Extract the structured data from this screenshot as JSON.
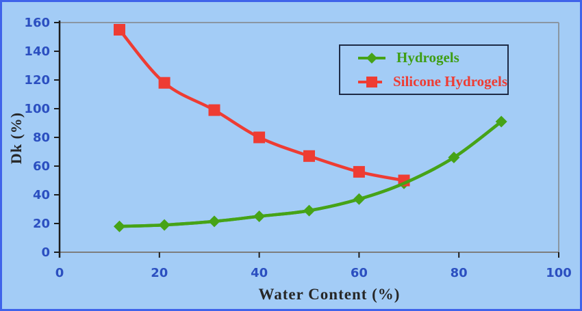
{
  "figure": {
    "background_color": "#a3ccf6",
    "outer_border_color": "#3f63ea",
    "axis_line_color": "#1c1c1c",
    "frame_line_color": "#8a96a2",
    "baseline_color": "#7d7d7d",
    "tick_label_color": "#2b4fc0",
    "axis_title_color": "#272727"
  },
  "chart_data": {
    "type": "line",
    "title": "",
    "xlabel": "Water Content (%)",
    "ylabel": "Dk (%)",
    "xlim": [
      0,
      100
    ],
    "ylim": [
      0,
      160
    ],
    "xticks": [
      0,
      20,
      40,
      60,
      80,
      100
    ],
    "yticks": [
      0,
      20,
      40,
      60,
      80,
      100,
      120,
      140,
      160
    ],
    "grid": false,
    "legend_position": "inside-top-right",
    "series": [
      {
        "name": "Hydrogels",
        "color": "#46a317",
        "marker": "diamond",
        "points": [
          [
            12,
            18
          ],
          [
            21,
            19
          ],
          [
            31,
            21.5
          ],
          [
            40,
            25
          ],
          [
            50,
            29
          ],
          [
            60,
            37
          ],
          [
            69,
            48
          ],
          [
            79,
            66
          ],
          [
            88.5,
            91
          ]
        ]
      },
      {
        "name": "Silicone Hydrogels",
        "color": "#ee3c33",
        "marker": "square",
        "points": [
          [
            12,
            155
          ],
          [
            21,
            118
          ],
          [
            31,
            99
          ],
          [
            40,
            80
          ],
          [
            50,
            67
          ],
          [
            60,
            56
          ],
          [
            69,
            50
          ]
        ]
      }
    ]
  }
}
